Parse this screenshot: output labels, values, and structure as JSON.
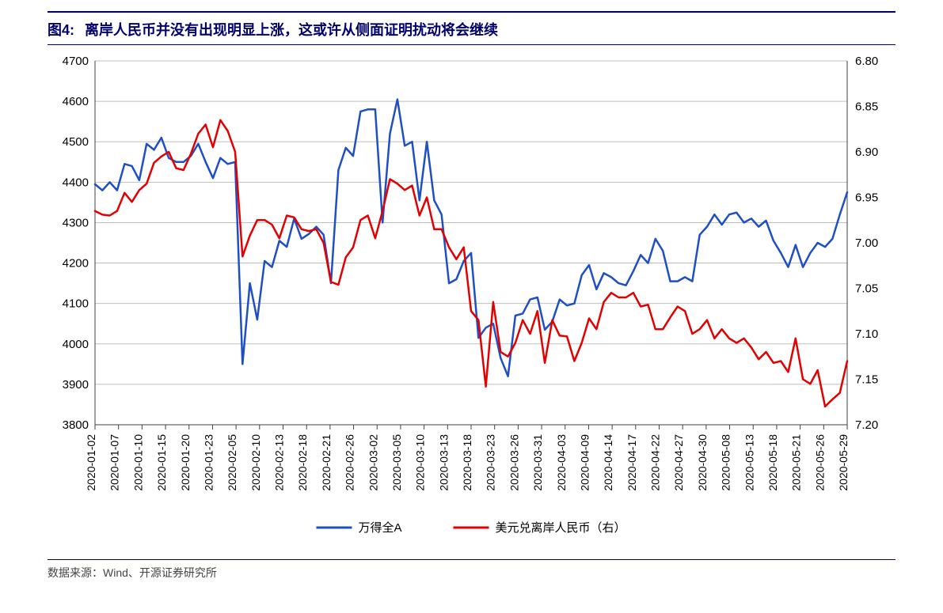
{
  "figure": {
    "prefix": "图4:",
    "title": "离岸人民币并没有出现明显上涨，这或许从侧面证明扰动将会继续",
    "title_color": "#00006b",
    "title_fontsize": 18,
    "source": "数据来源：Wind、开源证券研究所"
  },
  "chart": {
    "type": "line_dual_axis",
    "background_color": "#ffffff",
    "grid_color": "#bfbfbf",
    "axis_line_color": "#404040",
    "label_fontsize": 15,
    "xlabel_fontsize": 14,
    "y_left": {
      "min": 3800,
      "max": 4700,
      "tick_step": 100,
      "ticks": [
        3800,
        3900,
        4000,
        4100,
        4200,
        4300,
        4400,
        4500,
        4600,
        4700
      ]
    },
    "y_right": {
      "min": 7.2,
      "max": 6.8,
      "tick_step": 0.05,
      "ticks": [
        6.8,
        6.85,
        6.9,
        6.95,
        7.0,
        7.05,
        7.1,
        7.15,
        7.2
      ],
      "reversed": true
    },
    "x_categories": [
      "2020-01-02",
      "2020-01-07",
      "2020-01-10",
      "2020-01-15",
      "2020-01-20",
      "2020-01-23",
      "2020-02-05",
      "2020-02-10",
      "2020-02-13",
      "2020-02-18",
      "2020-02-21",
      "2020-02-26",
      "2020-03-02",
      "2020-03-05",
      "2020-03-10",
      "2020-03-13",
      "2020-03-18",
      "2020-03-23",
      "2020-03-26",
      "2020-03-31",
      "2020-04-03",
      "2020-04-09",
      "2020-04-14",
      "2020-04-17",
      "2020-04-22",
      "2020-04-27",
      "2020-04-30",
      "2020-05-08",
      "2020-05-13",
      "2020-05-18",
      "2020-05-21",
      "2020-05-26",
      "2020-05-29"
    ],
    "series": [
      {
        "name": "万得全A",
        "axis": "left",
        "color": "#1f4fc4",
        "line_width": 2.5,
        "data": [
          4395,
          4380,
          4400,
          4380,
          4445,
          4440,
          4405,
          4495,
          4480,
          4510,
          4460,
          4450,
          4450,
          4465,
          4495,
          4450,
          4410,
          4460,
          4445,
          4450,
          3950,
          4150,
          4060,
          4205,
          4190,
          4255,
          4240,
          4310,
          4260,
          4272,
          4290,
          4270,
          4150,
          4430,
          4485,
          4465,
          4575,
          4580,
          4580,
          4300,
          4520,
          4605,
          4490,
          4500,
          4355,
          4500,
          4355,
          4320,
          4150,
          4160,
          4205,
          4225,
          4015,
          4040,
          4050,
          3965,
          3920,
          4070,
          4075,
          4110,
          4115,
          4035,
          4055,
          4110,
          4095,
          4100,
          4170,
          4195,
          4135,
          4175,
          4165,
          4150,
          4145,
          4180,
          4220,
          4200,
          4260,
          4230,
          4155,
          4155,
          4165,
          4155,
          4270,
          4290,
          4320,
          4295,
          4320,
          4325,
          4300,
          4310,
          4290,
          4305,
          4255,
          4225,
          4190,
          4245,
          4190,
          4225,
          4250,
          4240,
          4260,
          4320,
          4375
        ]
      },
      {
        "name": "美元兑离岸人民币（右）",
        "axis": "right",
        "color": "#e30000",
        "line_width": 2.5,
        "data": [
          6.965,
          6.969,
          6.97,
          6.965,
          6.945,
          6.955,
          6.942,
          6.935,
          6.912,
          6.905,
          6.9,
          6.918,
          6.92,
          6.902,
          6.88,
          6.87,
          6.895,
          6.865,
          6.877,
          6.9,
          7.015,
          6.992,
          6.975,
          6.975,
          6.98,
          6.995,
          6.97,
          6.972,
          6.985,
          6.987,
          6.985,
          7.0,
          7.043,
          7.046,
          7.016,
          7.005,
          6.975,
          6.97,
          6.995,
          6.965,
          6.93,
          6.935,
          6.942,
          6.937,
          6.97,
          6.95,
          6.985,
          6.985,
          7.005,
          7.018,
          7.005,
          7.075,
          7.085,
          7.158,
          7.065,
          7.12,
          7.125,
          7.11,
          7.085,
          7.1,
          7.075,
          7.132,
          7.085,
          7.102,
          7.103,
          7.13,
          7.11,
          7.083,
          7.095,
          7.065,
          7.055,
          7.06,
          7.06,
          7.055,
          7.07,
          7.068,
          7.095,
          7.095,
          7.082,
          7.07,
          7.075,
          7.1,
          7.095,
          7.085,
          7.105,
          7.095,
          7.105,
          7.11,
          7.105,
          7.115,
          7.128,
          7.12,
          7.132,
          7.13,
          7.142,
          7.105,
          7.15,
          7.155,
          7.14,
          7.18,
          7.172,
          7.165,
          7.13
        ]
      }
    ],
    "legend": {
      "position": "bottom-center",
      "items": [
        {
          "label": "万得全A",
          "color": "#1f4fc4"
        },
        {
          "label": "美元兑离岸人民币（右）",
          "color": "#e30000"
        }
      ]
    }
  }
}
